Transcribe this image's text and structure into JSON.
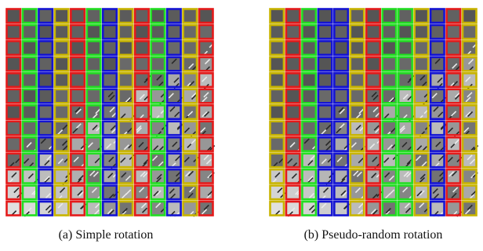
{
  "colors": {
    "red": "#e41a1a",
    "green": "#22dd22",
    "blue": "#1414d2",
    "yellow": "#c8b400",
    "background": "#ffffff"
  },
  "figure_a": {
    "caption": "(a) Simple rotation",
    "column_colors": [
      "red",
      "green",
      "blue",
      "yellow",
      "red",
      "green",
      "blue",
      "yellow",
      "red",
      "green",
      "blue",
      "yellow",
      "red"
    ]
  },
  "figure_b": {
    "caption": "(b) Pseudo-random rotation",
    "column_colors": [
      "yellow",
      "red",
      "green",
      "blue",
      "blue",
      "yellow",
      "red",
      "green",
      "green",
      "yellow",
      "blue",
      "red",
      "yellow"
    ]
  }
}
